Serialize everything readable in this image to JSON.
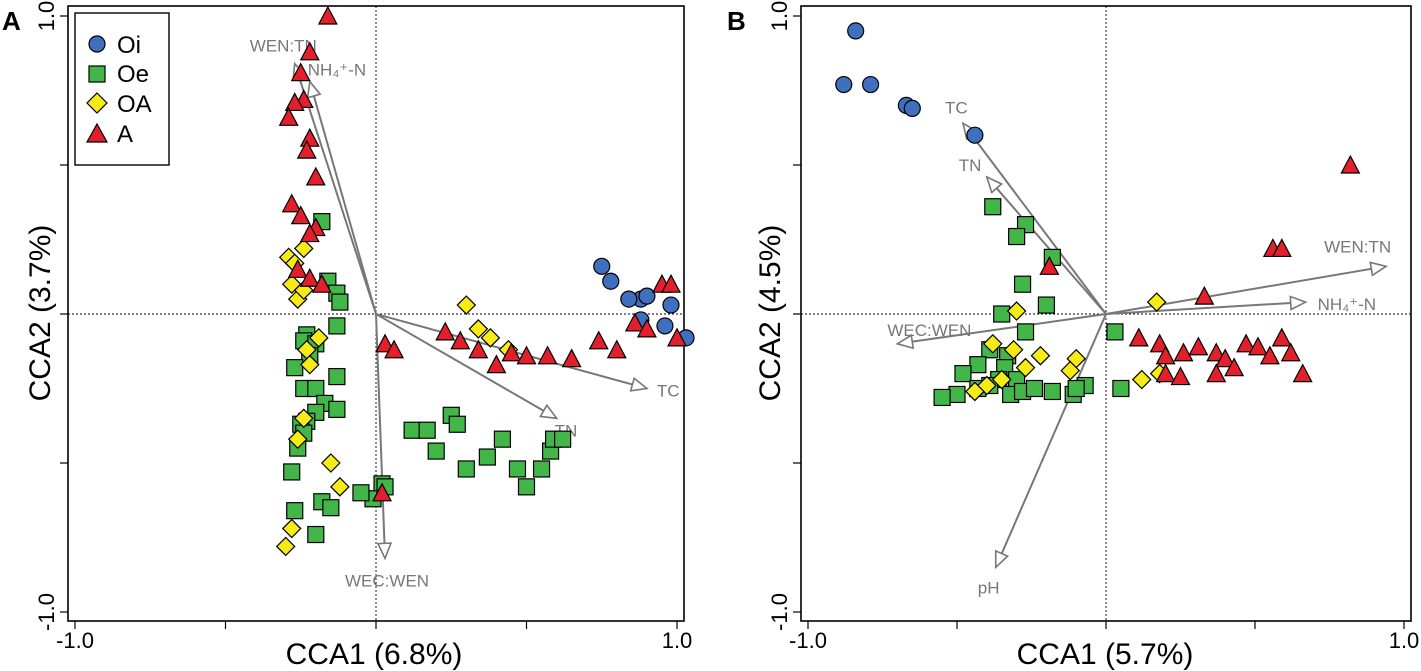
{
  "figure": {
    "labels": [
      "A",
      "B"
    ]
  },
  "legend": {
    "items": [
      {
        "key": "Oi",
        "label": "Oi",
        "shape": "circle",
        "color": "#3f6fbf"
      },
      {
        "key": "Oe",
        "label": "Oe",
        "shape": "square",
        "color": "#43b649"
      },
      {
        "key": "OA",
        "label": "OA",
        "shape": "diamond",
        "color": "#f6eb16"
      },
      {
        "key": "A",
        "label": "A",
        "shape": "triangle",
        "color": "#e1202b"
      }
    ]
  },
  "colors": {
    "arrow": "#777777",
    "axis": "#000000",
    "marker_edge": "#000000"
  },
  "chart_data": [
    {
      "panel_label": "A",
      "type": "scatter",
      "xlabel": "CCA1 (6.8%)",
      "ylabel": "CCA2 (3.7%)",
      "xlim": [
        -1.0,
        1.0
      ],
      "ylim": [
        -1.0,
        1.0
      ],
      "x_tick_labels": [
        {
          "v": -1.0,
          "label": "-1.0"
        },
        {
          "v": 1.0,
          "label": "1.0"
        }
      ],
      "y_tick_labels": [
        {
          "v": -1.0,
          "label": "-1.0"
        },
        {
          "v": 1.0,
          "label": "1.0"
        }
      ],
      "minor_ticks": [
        -0.5,
        0.0,
        0.5
      ],
      "show_legend": true,
      "series": [
        {
          "name": "Oi",
          "points": [
            [
              0.75,
              0.16
            ],
            [
              0.78,
              0.11
            ],
            [
              0.88,
              0.05
            ],
            [
              0.98,
              0.03
            ],
            [
              1.03,
              -0.08
            ],
            [
              0.88,
              -0.02
            ],
            [
              0.9,
              0.06
            ],
            [
              0.84,
              0.05
            ],
            [
              0.96,
              -0.04
            ]
          ]
        },
        {
          "name": "Oe",
          "points": [
            [
              -0.18,
              0.31
            ],
            [
              -0.16,
              0.11
            ],
            [
              -0.13,
              0.07
            ],
            [
              -0.12,
              0.04
            ],
            [
              -0.13,
              -0.04
            ],
            [
              -0.23,
              -0.07
            ],
            [
              -0.24,
              -0.09
            ],
            [
              -0.2,
              -0.1
            ],
            [
              -0.22,
              -0.14
            ],
            [
              -0.27,
              -0.18
            ],
            [
              -0.24,
              -0.25
            ],
            [
              -0.2,
              -0.25
            ],
            [
              -0.17,
              -0.3
            ],
            [
              -0.13,
              -0.21
            ],
            [
              -0.13,
              -0.32
            ],
            [
              -0.2,
              -0.33
            ],
            [
              -0.23,
              -0.36
            ],
            [
              -0.25,
              -0.37
            ],
            [
              -0.24,
              -0.4
            ],
            [
              -0.26,
              -0.45
            ],
            [
              -0.28,
              -0.53
            ],
            [
              -0.18,
              -0.63
            ],
            [
              -0.15,
              -0.65
            ],
            [
              -0.27,
              -0.66
            ],
            [
              -0.2,
              -0.74
            ],
            [
              0.02,
              -0.57
            ],
            [
              0.12,
              -0.39
            ],
            [
              0.17,
              -0.39
            ],
            [
              0.2,
              -0.46
            ],
            [
              0.25,
              -0.34
            ],
            [
              0.27,
              -0.37
            ],
            [
              0.3,
              -0.52
            ],
            [
              0.37,
              -0.48
            ],
            [
              0.42,
              -0.42
            ],
            [
              0.47,
              -0.52
            ],
            [
              0.5,
              -0.58
            ],
            [
              0.55,
              -0.52
            ],
            [
              0.58,
              -0.46
            ],
            [
              0.59,
              -0.42
            ],
            [
              0.62,
              -0.42
            ],
            [
              -0.01,
              -0.62
            ],
            [
              0.03,
              -0.58
            ],
            [
              -0.05,
              -0.6
            ]
          ]
        },
        {
          "name": "OA",
          "points": [
            [
              -0.29,
              0.19
            ],
            [
              -0.27,
              0.17
            ],
            [
              -0.24,
              0.22
            ],
            [
              -0.28,
              0.1
            ],
            [
              -0.26,
              0.05
            ],
            [
              -0.24,
              0.08
            ],
            [
              -0.19,
              -0.08
            ],
            [
              -0.23,
              -0.12
            ],
            [
              -0.22,
              -0.17
            ],
            [
              -0.24,
              -0.35
            ],
            [
              -0.26,
              -0.42
            ],
            [
              -0.15,
              -0.5
            ],
            [
              -0.12,
              -0.58
            ],
            [
              -0.28,
              -0.72
            ],
            [
              -0.3,
              -0.78
            ],
            [
              0.3,
              0.03
            ],
            [
              0.34,
              -0.05
            ],
            [
              0.38,
              -0.08
            ],
            [
              0.44,
              -0.12
            ]
          ]
        },
        {
          "name": "A",
          "points": [
            [
              -0.16,
              1.0
            ],
            [
              -0.22,
              0.88
            ],
            [
              -0.25,
              0.81
            ],
            [
              -0.24,
              0.72
            ],
            [
              -0.27,
              0.71
            ],
            [
              -0.29,
              0.66
            ],
            [
              -0.22,
              0.59
            ],
            [
              -0.23,
              0.55
            ],
            [
              -0.2,
              0.46
            ],
            [
              -0.28,
              0.37
            ],
            [
              -0.25,
              0.33
            ],
            [
              -0.2,
              0.29
            ],
            [
              -0.22,
              0.27
            ],
            [
              -0.26,
              0.15
            ],
            [
              -0.22,
              0.12
            ],
            [
              -0.18,
              0.1
            ],
            [
              0.23,
              -0.06
            ],
            [
              0.28,
              -0.09
            ],
            [
              0.34,
              -0.12
            ],
            [
              0.4,
              -0.17
            ],
            [
              0.45,
              -0.13
            ],
            [
              0.5,
              -0.14
            ],
            [
              0.57,
              -0.14
            ],
            [
              0.65,
              -0.15
            ],
            [
              0.74,
              -0.09
            ],
            [
              0.8,
              -0.12
            ],
            [
              0.86,
              -0.03
            ],
            [
              0.9,
              -0.05
            ],
            [
              1.0,
              -0.08
            ],
            [
              0.03,
              -0.1
            ],
            [
              0.06,
              -0.12
            ],
            [
              0.95,
              0.1
            ],
            [
              0.98,
              0.1
            ],
            [
              0.02,
              -0.6
            ]
          ]
        }
      ],
      "vectors": [
        {
          "label": "WEN:TN",
          "x": -0.27,
          "y": 0.84
        },
        {
          "label": "NH₄⁺-N",
          "x": -0.22,
          "y": 0.78
        },
        {
          "label": "TC",
          "x": 0.9,
          "y": -0.25
        },
        {
          "label": "TN",
          "x": 0.6,
          "y": -0.35
        },
        {
          "label": "WEC:WEN",
          "x": 0.03,
          "y": -0.82
        }
      ]
    },
    {
      "panel_label": "B",
      "type": "scatter",
      "xlabel": "CCA1 (5.7%)",
      "ylabel": "CCA2 (4.5%)",
      "xlim": [
        -1.0,
        1.0
      ],
      "ylim": [
        -1.0,
        1.0
      ],
      "x_tick_labels": [
        {
          "v": -1.0,
          "label": "-1.0"
        },
        {
          "v": 1.0,
          "label": "1.0"
        }
      ],
      "y_tick_labels": [
        {
          "v": -1.0,
          "label": "-1.0"
        },
        {
          "v": 1.0,
          "label": "1.0"
        }
      ],
      "minor_ticks": [
        -0.5,
        0.0,
        0.5
      ],
      "show_legend": false,
      "series": [
        {
          "name": "Oi",
          "points": [
            [
              -0.84,
              0.95
            ],
            [
              -0.88,
              0.77
            ],
            [
              -0.79,
              0.77
            ],
            [
              -0.67,
              0.7
            ],
            [
              -0.65,
              0.69
            ],
            [
              -0.44,
              0.6
            ]
          ]
        },
        {
          "name": "Oe",
          "points": [
            [
              -0.38,
              0.36
            ],
            [
              -0.27,
              0.3
            ],
            [
              -0.3,
              0.26
            ],
            [
              -0.18,
              0.19
            ],
            [
              -0.28,
              0.1
            ],
            [
              -0.2,
              0.03
            ],
            [
              -0.35,
              0.0
            ],
            [
              -0.27,
              -0.06
            ],
            [
              -0.39,
              -0.12
            ],
            [
              -0.33,
              -0.14
            ],
            [
              -0.43,
              -0.17
            ],
            [
              -0.34,
              -0.18
            ],
            [
              -0.48,
              -0.2
            ],
            [
              -0.3,
              -0.22
            ],
            [
              -0.36,
              -0.22
            ],
            [
              -0.39,
              -0.24
            ],
            [
              -0.43,
              -0.25
            ],
            [
              -0.5,
              -0.27
            ],
            [
              -0.55,
              -0.28
            ],
            [
              -0.32,
              -0.27
            ],
            [
              -0.28,
              -0.26
            ],
            [
              -0.24,
              -0.25
            ],
            [
              -0.18,
              -0.26
            ],
            [
              -0.11,
              -0.27
            ],
            [
              -0.07,
              -0.24
            ],
            [
              -0.1,
              -0.25
            ],
            [
              0.03,
              -0.06
            ],
            [
              0.05,
              -0.25
            ]
          ]
        },
        {
          "name": "OA",
          "points": [
            [
              -0.3,
              0.01
            ],
            [
              -0.38,
              -0.1
            ],
            [
              -0.31,
              -0.12
            ],
            [
              -0.22,
              -0.14
            ],
            [
              -0.27,
              -0.18
            ],
            [
              -0.35,
              -0.22
            ],
            [
              -0.4,
              -0.24
            ],
            [
              -0.44,
              -0.26
            ],
            [
              0.17,
              0.04
            ],
            [
              -0.1,
              -0.15
            ],
            [
              -0.12,
              -0.19
            ],
            [
              0.12,
              -0.22
            ],
            [
              0.18,
              -0.2
            ]
          ]
        },
        {
          "name": "A",
          "points": [
            [
              0.82,
              0.5
            ],
            [
              0.56,
              0.22
            ],
            [
              0.59,
              0.22
            ],
            [
              -0.19,
              0.16
            ],
            [
              0.33,
              0.06
            ],
            [
              0.11,
              -0.08
            ],
            [
              0.18,
              -0.1
            ],
            [
              0.2,
              -0.14
            ],
            [
              0.26,
              -0.13
            ],
            [
              0.31,
              -0.11
            ],
            [
              0.37,
              -0.13
            ],
            [
              0.4,
              -0.15
            ],
            [
              0.47,
              -0.1
            ],
            [
              0.51,
              -0.11
            ],
            [
              0.55,
              -0.14
            ],
            [
              0.59,
              -0.08
            ],
            [
              0.62,
              -0.13
            ],
            [
              0.66,
              -0.2
            ],
            [
              0.2,
              -0.2
            ],
            [
              0.25,
              -0.21
            ],
            [
              0.37,
              -0.2
            ],
            [
              0.43,
              -0.18
            ]
          ]
        }
      ],
      "vectors": [
        {
          "label": "TC",
          "x": -0.48,
          "y": 0.64
        },
        {
          "label": "TN",
          "x": -0.4,
          "y": 0.46
        },
        {
          "label": "WEN:TN",
          "x": 0.94,
          "y": 0.16
        },
        {
          "label": "NH₄⁺-N",
          "x": 0.67,
          "y": 0.04
        },
        {
          "label": "WEC:WEN",
          "x": -0.7,
          "y": -0.1
        },
        {
          "label": "pH",
          "x": -0.37,
          "y": -0.85
        }
      ]
    }
  ]
}
